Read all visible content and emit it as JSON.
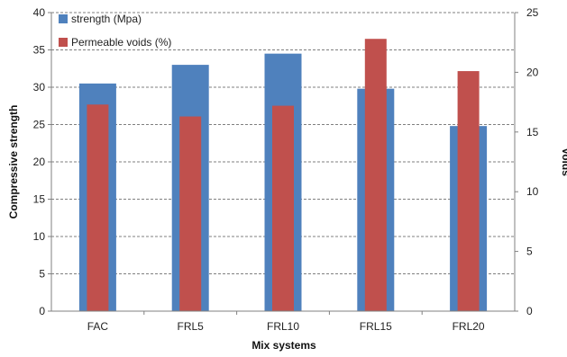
{
  "chart_data": {
    "type": "bar",
    "categories": [
      "FAC",
      "FRL5",
      "FRL10",
      "FRL15",
      "FRL20"
    ],
    "series": [
      {
        "name": "strength (Mpa)",
        "axis": "left",
        "color": "#4f81bd",
        "values": [
          30.5,
          33.0,
          34.5,
          29.8,
          24.8
        ]
      },
      {
        "name": "Permeable voids (%)",
        "axis": "right",
        "color": "#c0504d",
        "values": [
          17.3,
          16.3,
          17.2,
          22.8,
          20.1
        ]
      }
    ],
    "xlabel": "Mix systems",
    "ylabel": "Compressive strength",
    "y2label": "Voids",
    "ylim": [
      0,
      40
    ],
    "y2lim": [
      0,
      25
    ],
    "yticks": [
      "0",
      "5",
      "10",
      "15",
      "20",
      "25",
      "30",
      "35",
      "40"
    ],
    "y2ticks": [
      "0",
      "5",
      "10",
      "15",
      "20",
      "25"
    ],
    "grid": "horizontal dashed",
    "legend": "top-left"
  }
}
